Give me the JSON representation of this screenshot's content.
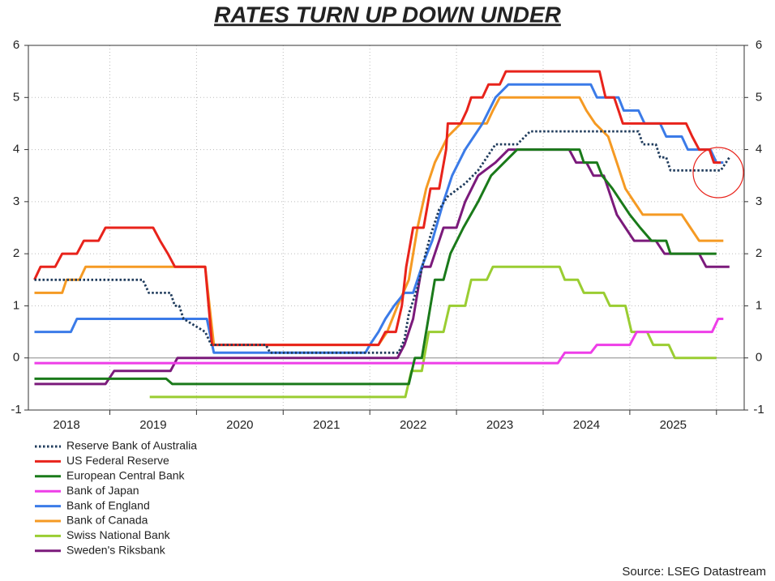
{
  "chart_data": {
    "type": "line",
    "title": "RATES TURN UP DOWN UNDER",
    "source": "Source: LSEG Datastream",
    "xlim": [
      2018.06,
      2026.32
    ],
    "xticks": [
      {
        "value": 2018.5,
        "label": "2018"
      },
      {
        "value": 2019.5,
        "label": "2019"
      },
      {
        "value": 2020.5,
        "label": "2020"
      },
      {
        "value": 2021.5,
        "label": "2021"
      },
      {
        "value": 2022.5,
        "label": "2022"
      },
      {
        "value": 2023.5,
        "label": "2023"
      },
      {
        "value": 2024.5,
        "label": "2024"
      },
      {
        "value": 2025.5,
        "label": "2025"
      }
    ],
    "xgrid": [
      2019,
      2020,
      2021,
      2022,
      2023,
      2024,
      2025,
      2026
    ],
    "ylim": [
      -1,
      6
    ],
    "yticks": [
      -1,
      0,
      1,
      2,
      3,
      4,
      5,
      6
    ],
    "y2lim": [
      -1,
      6
    ],
    "y2ticks": [
      -1,
      0,
      1,
      2,
      3,
      4,
      5,
      6
    ],
    "grid": true,
    "legend": "bottom-left",
    "series": [
      {
        "name": "Reserve Bank of Australia",
        "color": "#1f3b5c",
        "dash": "dotted",
        "x": [
          2018.13,
          2019.38,
          2019.45,
          2019.7,
          2019.75,
          2019.8,
          2019.85,
          2020.1,
          2020.17,
          2020.8,
          2020.85,
          2022.33,
          2022.4,
          2022.45,
          2022.55,
          2022.62,
          2022.7,
          2022.75,
          2022.8,
          2022.9,
          2023.1,
          2023.25,
          2023.35,
          2023.45,
          2023.7,
          2023.85,
          2025.1,
          2025.15,
          2025.3,
          2025.35,
          2025.42,
          2025.47,
          2026.05,
          2026.15
        ],
        "values": [
          1.5,
          1.5,
          1.25,
          1.25,
          1.0,
          1.0,
          0.75,
          0.5,
          0.25,
          0.25,
          0.1,
          0.1,
          0.35,
          0.85,
          1.35,
          1.85,
          2.35,
          2.6,
          2.85,
          3.1,
          3.35,
          3.6,
          3.85,
          4.1,
          4.1,
          4.35,
          4.35,
          4.1,
          4.1,
          3.85,
          3.85,
          3.6,
          3.6,
          3.85
        ]
      },
      {
        "name": "US Federal Reserve",
        "color": "#e8231b",
        "x": [
          2018.13,
          2018.2,
          2018.37,
          2018.45,
          2018.62,
          2018.7,
          2018.87,
          2018.95,
          2019.5,
          2019.58,
          2019.67,
          2019.75,
          2020.1,
          2020.18,
          2022.1,
          2022.18,
          2022.3,
          2022.37,
          2022.42,
          2022.5,
          2022.62,
          2022.7,
          2022.8,
          2022.88,
          2022.9,
          2023.05,
          2023.12,
          2023.17,
          2023.3,
          2023.37,
          2023.5,
          2023.57,
          2024.65,
          2024.72,
          2024.82,
          2024.87,
          2024.92,
          2025.65,
          2025.72,
          2025.8,
          2025.92,
          2025.97,
          2026.05
        ],
        "values": [
          1.5,
          1.75,
          1.75,
          2.0,
          2.0,
          2.25,
          2.25,
          2.5,
          2.5,
          2.25,
          2.0,
          1.75,
          1.75,
          0.25,
          0.25,
          0.5,
          0.5,
          1.0,
          1.75,
          2.5,
          2.5,
          3.25,
          3.25,
          4.0,
          4.5,
          4.5,
          4.75,
          5.0,
          5.0,
          5.25,
          5.25,
          5.5,
          5.5,
          5.0,
          5.0,
          4.75,
          4.5,
          4.5,
          4.25,
          4.0,
          4.0,
          3.75,
          3.75
        ]
      },
      {
        "name": "European Central Bank",
        "color": "#1a7a1a",
        "x": [
          2018.13,
          2019.65,
          2019.72,
          2022.45,
          2022.52,
          2022.6,
          2022.75,
          2022.85,
          2022.93,
          2023.08,
          2023.25,
          2023.4,
          2023.55,
          2023.7,
          2024.42,
          2024.47,
          2024.62,
          2024.68,
          2024.8,
          2024.9,
          2025.0,
          2025.12,
          2025.25,
          2025.42,
          2025.47,
          2026.0
        ],
        "values": [
          -0.4,
          -0.4,
          -0.5,
          -0.5,
          0,
          0,
          1.5,
          1.5,
          2.0,
          2.5,
          3.0,
          3.5,
          3.75,
          4.0,
          4.0,
          3.75,
          3.75,
          3.5,
          3.25,
          3.0,
          2.75,
          2.5,
          2.25,
          2.25,
          2.0,
          2.0
        ]
      },
      {
        "name": "Bank of Japan",
        "color": "#ee3ee8",
        "x": [
          2018.13,
          2024.17,
          2024.25,
          2024.55,
          2024.62,
          2025.0,
          2025.08,
          2025.95,
          2026.02,
          2026.08
        ],
        "values": [
          -0.1,
          -0.1,
          0.1,
          0.1,
          0.25,
          0.25,
          0.5,
          0.5,
          0.75,
          0.75
        ]
      },
      {
        "name": "Bank of England",
        "color": "#3b7be8",
        "x": [
          2018.13,
          2018.55,
          2018.62,
          2020.12,
          2020.2,
          2021.95,
          2022.0,
          2022.1,
          2022.18,
          2022.28,
          2022.4,
          2022.5,
          2022.6,
          2022.72,
          2022.85,
          2022.95,
          2023.1,
          2023.2,
          2023.3,
          2023.45,
          2023.6,
          2024.55,
          2024.62,
          2024.87,
          2024.93,
          2025.1,
          2025.17,
          2025.35,
          2025.42,
          2025.6,
          2025.67,
          2025.93,
          2026.0,
          2026.08
        ],
        "values": [
          0.5,
          0.5,
          0.75,
          0.75,
          0.1,
          0.1,
          0.25,
          0.5,
          0.75,
          1.0,
          1.25,
          1.25,
          1.75,
          2.25,
          3.0,
          3.5,
          4.0,
          4.25,
          4.5,
          5.0,
          5.25,
          5.25,
          5.0,
          5.0,
          4.75,
          4.75,
          4.5,
          4.5,
          4.25,
          4.25,
          4.0,
          4.0,
          3.75,
          3.75
        ]
      },
      {
        "name": "Bank of Canada",
        "color": "#f59a23",
        "x": [
          2018.13,
          2018.45,
          2018.5,
          2018.65,
          2018.72,
          2020.1,
          2020.2,
          2022.1,
          2022.2,
          2022.32,
          2022.45,
          2022.55,
          2022.65,
          2022.75,
          2022.9,
          2023.05,
          2023.35,
          2023.42,
          2023.5,
          2024.42,
          2024.5,
          2024.6,
          2024.75,
          2024.85,
          2024.95,
          2025.05,
          2025.15,
          2025.6,
          2025.7,
          2025.8,
          2026.08
        ],
        "values": [
          1.25,
          1.25,
          1.5,
          1.5,
          1.75,
          1.75,
          0.25,
          0.25,
          0.5,
          1.0,
          1.5,
          2.5,
          3.25,
          3.75,
          4.25,
          4.5,
          4.5,
          4.75,
          5.0,
          5.0,
          4.75,
          4.5,
          4.25,
          3.75,
          3.25,
          3.0,
          2.75,
          2.75,
          2.5,
          2.25,
          2.25
        ]
      },
      {
        "name": "Swiss National Bank",
        "color": "#9acd32",
        "x": [
          2019.46,
          2022.41,
          2022.48,
          2022.6,
          2022.68,
          2022.85,
          2022.92,
          2023.1,
          2023.17,
          2023.35,
          2023.42,
          2024.19,
          2024.25,
          2024.4,
          2024.47,
          2024.7,
          2024.77,
          2024.95,
          2025.02,
          2025.2,
          2025.27,
          2025.45,
          2025.52,
          2026.0
        ],
        "values": [
          -0.75,
          -0.75,
          -0.25,
          -0.25,
          0.5,
          0.5,
          1.0,
          1.0,
          1.5,
          1.5,
          1.75,
          1.75,
          1.5,
          1.5,
          1.25,
          1.25,
          1.0,
          1.0,
          0.5,
          0.5,
          0.25,
          0.25,
          0,
          0
        ]
      },
      {
        "name": "Sweden's Riksbank",
        "color": "#7b1a7b",
        "x": [
          2018.13,
          2018.95,
          2019.05,
          2019.7,
          2019.78,
          2022.32,
          2022.4,
          2022.5,
          2022.6,
          2022.7,
          2022.85,
          2023.0,
          2023.1,
          2023.25,
          2023.45,
          2023.6,
          2024.3,
          2024.38,
          2024.5,
          2024.58,
          2024.7,
          2024.75,
          2024.85,
          2024.95,
          2025.05,
          2025.3,
          2025.4,
          2025.8,
          2025.88,
          2026.15
        ],
        "values": [
          -0.5,
          -0.5,
          -0.25,
          -0.25,
          0,
          0,
          0.25,
          0.75,
          1.75,
          1.75,
          2.5,
          2.5,
          3.0,
          3.5,
          3.75,
          4.0,
          4.0,
          3.75,
          3.75,
          3.5,
          3.5,
          3.25,
          2.75,
          2.5,
          2.25,
          2.25,
          2.0,
          2.0,
          1.75,
          1.75
        ]
      }
    ]
  }
}
